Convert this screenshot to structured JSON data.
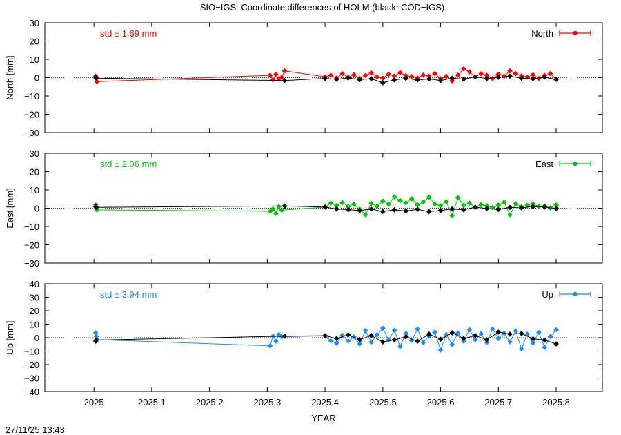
{
  "title": "SIO−IGS: Coordinate differences of HOLM (black: COD−IGS)",
  "timestamp": "27/11/25 13:43",
  "chart_data": [
    {
      "type": "line",
      "component": "north",
      "ylabel": "North [mm]",
      "xlabel": "",
      "xlim": [
        2024.915,
        2025.88
      ],
      "ylim": [
        -30,
        30
      ],
      "yticks": [
        -30,
        -20,
        -10,
        0,
        10,
        20,
        30
      ],
      "yticklabels": [
        "−30",
        "−20",
        "−10",
        "0",
        "10",
        "20",
        "30"
      ],
      "zero_line": "dotted",
      "std_label": "std ± 1.69 mm",
      "legend": {
        "label": "North",
        "placement": "top-right"
      },
      "color": "#ff0000",
      "series": [
        {
          "name": "North",
          "color": "#ff0000",
          "x": [
            2025.003,
            2025.004,
            2025.005,
            2025.305,
            2025.31,
            2025.315,
            2025.32,
            2025.325,
            2025.33,
            2025.4,
            2025.41,
            2025.42,
            2025.43,
            2025.44,
            2025.45,
            2025.46,
            2025.47,
            2025.48,
            2025.49,
            2025.5,
            2025.51,
            2025.52,
            2025.53,
            2025.54,
            2025.55,
            2025.56,
            2025.57,
            2025.58,
            2025.59,
            2025.6,
            2025.61,
            2025.62,
            2025.63,
            2025.64,
            2025.65,
            2025.66,
            2025.67,
            2025.68,
            2025.69,
            2025.7,
            2025.71,
            2025.72,
            2025.73,
            2025.74,
            2025.75,
            2025.76,
            2025.77,
            2025.78,
            2025.79,
            2025.8
          ],
          "y": [
            0.8,
            -0.5,
            -2.2,
            1.3,
            -1.2,
            1.8,
            -0.6,
            0.2,
            3.7,
            0.5,
            1.3,
            -0.2,
            2.1,
            0.3,
            1.6,
            -0.4,
            1.2,
            2.6,
            0.4,
            -0.3,
            1.8,
            0.9,
            2.8,
            1.1,
            0.6,
            -0.2,
            1.4,
            0.8,
            2.2,
            -0.6,
            0.7,
            -1.8,
            1.4,
            4.8,
            3.2,
            0.5,
            2.1,
            1.3,
            -0.5,
            1.9,
            0.8,
            3.7,
            2.2,
            1.0,
            0.3,
            1.6,
            -0.4,
            1.2,
            2.2,
            -0.9
          ]
        },
        {
          "name": "COD−IGS",
          "color": "#000000",
          "x": [
            2025.003,
            2025.004,
            2025.33,
            2025.4,
            2025.42,
            2025.44,
            2025.46,
            2025.48,
            2025.5,
            2025.52,
            2025.54,
            2025.56,
            2025.58,
            2025.6,
            2025.62,
            2025.64,
            2025.66,
            2025.68,
            2025.7,
            2025.72,
            2025.74,
            2025.76,
            2025.78,
            2025.8
          ],
          "y": [
            0.2,
            -0.3,
            -1.6,
            -0.4,
            -0.9,
            -0.2,
            -1.1,
            -0.6,
            -2.8,
            -1.2,
            -0.4,
            -1.3,
            -0.7,
            -1.6,
            -0.3,
            -0.8,
            0.4,
            -0.5,
            0.2,
            0.8,
            -0.3,
            -0.6,
            0.3,
            -1.0
          ]
        }
      ]
    },
    {
      "type": "line",
      "component": "east",
      "ylabel": "East [mm]",
      "xlabel": "",
      "xlim": [
        2024.915,
        2025.88
      ],
      "ylim": [
        -30,
        30
      ],
      "yticks": [
        -30,
        -20,
        -10,
        0,
        10,
        20,
        30
      ],
      "yticklabels": [
        "−30",
        "−20",
        "−10",
        "0",
        "10",
        "20",
        "30"
      ],
      "zero_line": "dotted",
      "std_label": "std ± 2.06 mm",
      "legend": {
        "label": "East",
        "placement": "top-right"
      },
      "color": "#00c000",
      "series": [
        {
          "name": "East",
          "color": "#00c000",
          "x": [
            2025.003,
            2025.004,
            2025.005,
            2025.305,
            2025.31,
            2025.315,
            2025.32,
            2025.325,
            2025.4,
            2025.41,
            2025.42,
            2025.43,
            2025.44,
            2025.45,
            2025.46,
            2025.47,
            2025.48,
            2025.49,
            2025.5,
            2025.51,
            2025.52,
            2025.53,
            2025.54,
            2025.55,
            2025.56,
            2025.57,
            2025.58,
            2025.59,
            2025.6,
            2025.61,
            2025.62,
            2025.63,
            2025.64,
            2025.65,
            2025.66,
            2025.67,
            2025.68,
            2025.69,
            2025.7,
            2025.71,
            2025.72,
            2025.73,
            2025.74,
            2025.75,
            2025.76,
            2025.77,
            2025.78,
            2025.79,
            2025.8
          ],
          "y": [
            1.8,
            0.2,
            -0.9,
            -1.7,
            -0.4,
            -2.9,
            0.8,
            -1.1,
            0.6,
            2.8,
            1.4,
            3.1,
            0.9,
            2.2,
            -0.6,
            -3.6,
            2.6,
            1.1,
            3.9,
            2.2,
            6.2,
            4.1,
            2.9,
            5.1,
            1.8,
            3.4,
            6.0,
            2.3,
            1.4,
            3.6,
            -4.0,
            5.7,
            1.6,
            2.8,
            0.4,
            1.9,
            1.2,
            0.3,
            1.7,
            3.3,
            -3.6,
            2.5,
            0.8,
            1.6,
            2.4,
            0.9,
            1.3,
            0.2,
            1.8
          ]
        },
        {
          "name": "COD−IGS",
          "color": "#000000",
          "x": [
            2025.003,
            2025.004,
            2025.33,
            2025.4,
            2025.42,
            2025.44,
            2025.46,
            2025.48,
            2025.5,
            2025.52,
            2025.54,
            2025.56,
            2025.58,
            2025.6,
            2025.62,
            2025.64,
            2025.66,
            2025.68,
            2025.7,
            2025.72,
            2025.74,
            2025.76,
            2025.78,
            2025.8
          ],
          "y": [
            0.9,
            0.5,
            1.2,
            0.6,
            -0.4,
            -0.8,
            -1.3,
            -0.5,
            -1.8,
            -0.9,
            -1.5,
            -0.6,
            -1.9,
            -1.2,
            -0.4,
            -0.9,
            0.6,
            -0.2,
            -0.7,
            0.4,
            0.2,
            0.9,
            0.6,
            -0.2
          ]
        }
      ]
    },
    {
      "type": "line",
      "component": "up",
      "ylabel": "Up [mm]",
      "xlabel": "YEAR",
      "xlim": [
        2024.915,
        2025.88
      ],
      "ylim": [
        -40,
        40
      ],
      "yticks": [
        -40,
        -30,
        -20,
        -10,
        0,
        10,
        20,
        30,
        40
      ],
      "yticklabels": [
        "−40",
        "−30",
        "−20",
        "−10",
        "0",
        "10",
        "20",
        "30",
        "40"
      ],
      "xticks": [
        2025,
        2025.1,
        2025.2,
        2025.3,
        2025.4,
        2025.5,
        2025.6,
        2025.7,
        2025.8
      ],
      "xticklabels": [
        "2025",
        "2025.1",
        "2025.2",
        "2025.3",
        "2025.4",
        "2025.5",
        "2025.6",
        "2025.7",
        "2025.8"
      ],
      "zero_line": "dotted",
      "std_label": "std ± 3.94 mm",
      "legend": {
        "label": "Up",
        "placement": "top-right"
      },
      "color": "#1e8cf0",
      "series": [
        {
          "name": "Up",
          "color": "#1e8cf0",
          "x": [
            2025.003,
            2025.004,
            2025.005,
            2025.305,
            2025.31,
            2025.315,
            2025.32,
            2025.325,
            2025.4,
            2025.41,
            2025.42,
            2025.43,
            2025.44,
            2025.45,
            2025.46,
            2025.47,
            2025.48,
            2025.49,
            2025.5,
            2025.51,
            2025.52,
            2025.53,
            2025.54,
            2025.55,
            2025.56,
            2025.57,
            2025.58,
            2025.59,
            2025.6,
            2025.61,
            2025.62,
            2025.63,
            2025.64,
            2025.65,
            2025.66,
            2025.67,
            2025.68,
            2025.69,
            2025.7,
            2025.71,
            2025.72,
            2025.73,
            2025.74,
            2025.75,
            2025.76,
            2025.77,
            2025.78,
            2025.79,
            2025.8
          ],
          "y": [
            3.6,
            0.8,
            -1.5,
            -6.1,
            1.2,
            -2.6,
            2.3,
            0.6,
            1.4,
            -2.3,
            -4.1,
            1.8,
            -2.5,
            0.6,
            -4.6,
            5.2,
            -3.3,
            2.1,
            7.1,
            -1.6,
            5.4,
            -6.6,
            3.2,
            -2.1,
            6.4,
            -3.6,
            1.3,
            4.1,
            -9.2,
            2.3,
            -5.1,
            3.4,
            -2.6,
            5.9,
            -1.6,
            2.9,
            -3.6,
            6.4,
            -0.6,
            3.3,
            -3.1,
            4.9,
            -8.4,
            2.6,
            -4.1,
            3.9,
            -7.2,
            0.8,
            5.9
          ]
        },
        {
          "name": "COD−IGS",
          "color": "#000000",
          "x": [
            2025.003,
            2025.004,
            2025.33,
            2025.4,
            2025.42,
            2025.44,
            2025.46,
            2025.48,
            2025.5,
            2025.52,
            2025.54,
            2025.56,
            2025.58,
            2025.6,
            2025.62,
            2025.64,
            2025.66,
            2025.68,
            2025.7,
            2025.72,
            2025.74,
            2025.76,
            2025.78,
            2025.8
          ],
          "y": [
            -2.6,
            -1.8,
            1.2,
            1.5,
            -0.6,
            2.1,
            -1.4,
            1.6,
            -3.2,
            -1.6,
            0.6,
            -2.6,
            2.6,
            -1.1,
            3.6,
            -0.6,
            1.6,
            -1.6,
            4.1,
            2.6,
            3.1,
            -0.8,
            -1.8,
            -4.6
          ]
        }
      ]
    }
  ]
}
